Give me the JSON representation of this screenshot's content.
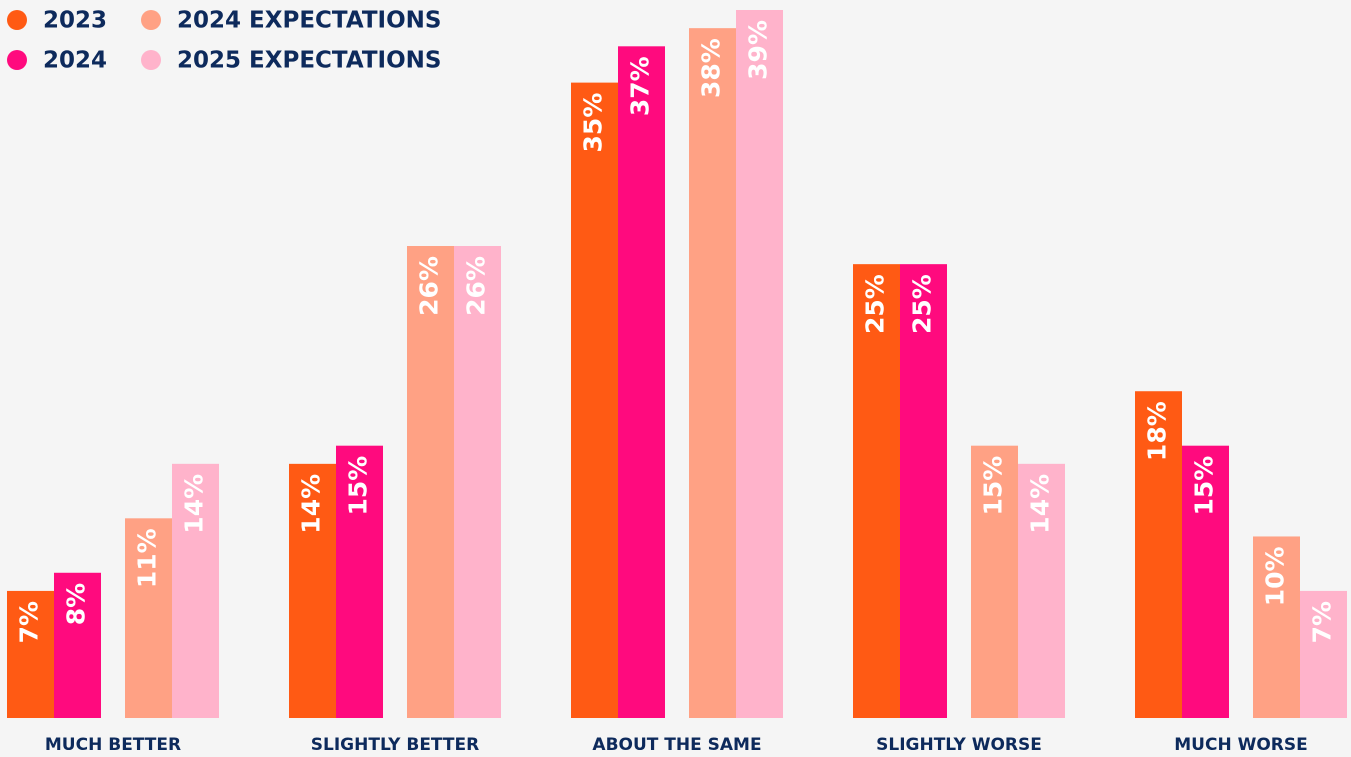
{
  "chart_data": {
    "type": "bar",
    "categories": [
      "MUCH BETTER",
      "SLIGHTLY BETTER",
      "ABOUT THE SAME",
      "SLIGHTLY WORSE",
      "MUCH WORSE"
    ],
    "series": [
      {
        "name": "2023",
        "color": "#ff5a14",
        "values": [
          7,
          14,
          35,
          25,
          18
        ],
        "value_labels": [
          "7%",
          "14%",
          "35%",
          "25%",
          "18%"
        ]
      },
      {
        "name": "2024",
        "color": "#ff0a7e",
        "values": [
          8,
          15,
          37,
          25,
          15
        ],
        "value_labels": [
          "8%",
          "15%",
          "37%",
          "25%",
          "15%"
        ]
      },
      {
        "name": "2024 EXPECTATIONS",
        "color": "#ffa184",
        "values": [
          11,
          26,
          38,
          15,
          10
        ],
        "value_labels": [
          "11%",
          "26%",
          "38%",
          "15%",
          "10%"
        ]
      },
      {
        "name": "2025 EXPECTATIONS",
        "color": "#ffb3cb",
        "values": [
          14,
          26,
          39,
          14,
          7
        ],
        "value_labels": [
          "14%",
          "26%",
          "39%",
          "14%",
          "7%"
        ]
      }
    ]
  }
}
